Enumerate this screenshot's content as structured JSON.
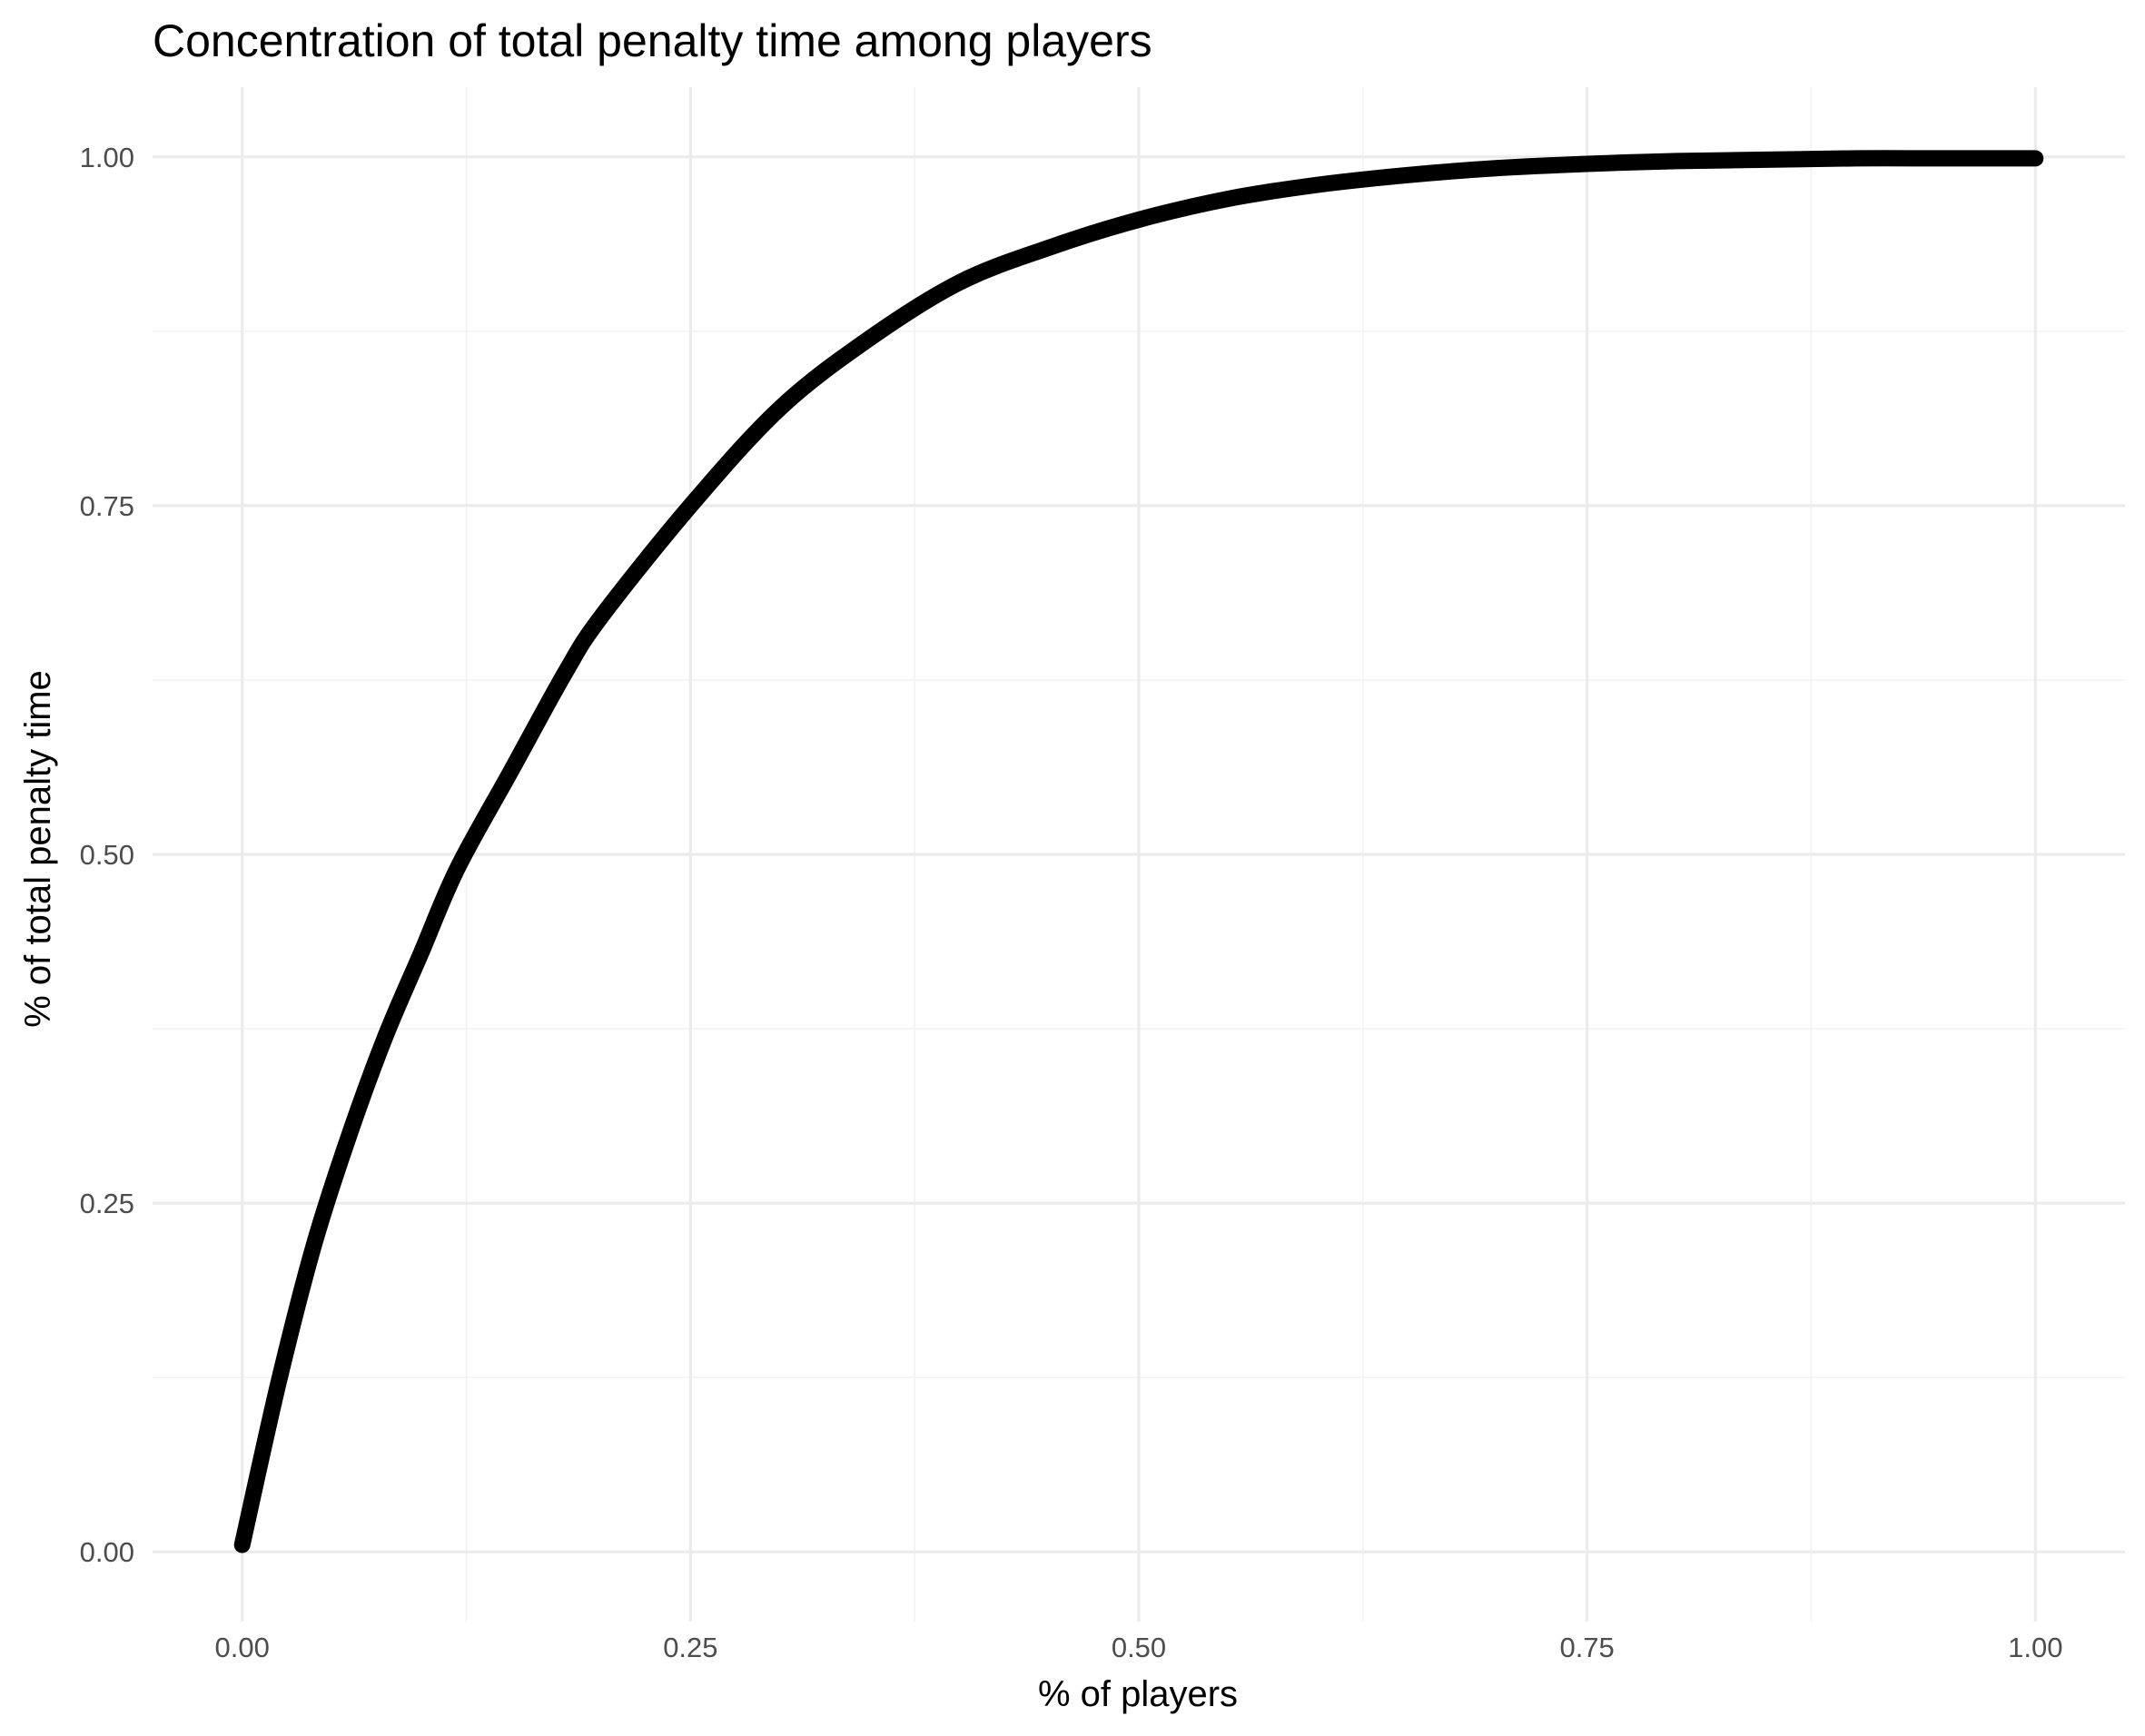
{
  "chart_data": {
    "type": "line",
    "title": "Concentration of total penalty time among players",
    "xlabel": "% of players",
    "ylabel": "% of total penalty time",
    "xlim": [
      -0.05,
      1.05
    ],
    "ylim": [
      -0.05,
      1.05
    ],
    "x_ticks": [
      0,
      0.25,
      0.5,
      0.75,
      1
    ],
    "x_tick_labels": [
      "0.00",
      "0.25",
      "0.50",
      "0.75",
      "1.00"
    ],
    "y_ticks": [
      0,
      0.25,
      0.5,
      0.75,
      1
    ],
    "y_tick_labels": [
      "0.00",
      "0.25",
      "0.50",
      "0.75",
      "1.00"
    ],
    "x_minor": [
      0.125,
      0.375,
      0.625,
      0.875
    ],
    "y_minor": [
      0.125,
      0.375,
      0.625,
      0.875
    ],
    "grid": true,
    "legend": "none",
    "line_color": "#000000",
    "grid_color": "#ebebeb",
    "series": [
      {
        "x": [
          0,
          0.02,
          0.04,
          0.06,
          0.08,
          0.1,
          0.12,
          0.15,
          0.18,
          0.2,
          0.25,
          0.3,
          0.35,
          0.4,
          0.45,
          0.5,
          0.55,
          0.6,
          0.65,
          0.7,
          0.75,
          0.8,
          0.85,
          0.9,
          0.95,
          1.0
        ],
        "y": [
          0.005,
          0.12,
          0.22,
          0.3,
          0.37,
          0.43,
          0.49,
          0.56,
          0.63,
          0.67,
          0.75,
          0.82,
          0.87,
          0.91,
          0.935,
          0.955,
          0.97,
          0.98,
          0.987,
          0.992,
          0.995,
          0.997,
          0.998,
          0.999,
          0.999,
          0.999
        ]
      }
    ]
  }
}
